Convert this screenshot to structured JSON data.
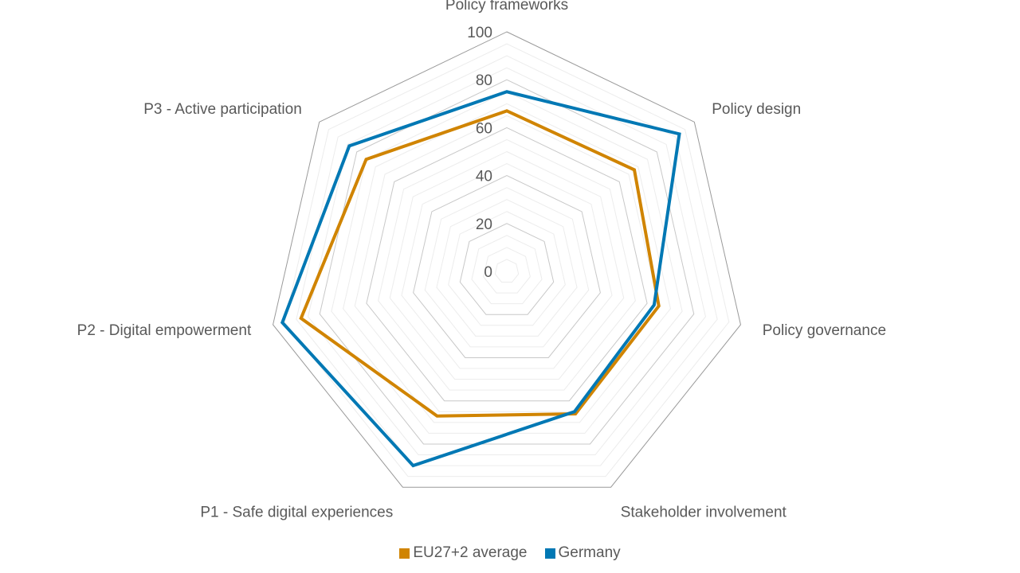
{
  "chart_data": {
    "type": "radar",
    "title": "",
    "categories": [
      "Policy frameworks",
      "Policy design",
      "Policy governance",
      "Stakeholder involvement",
      "P1 - Safe digital experiences",
      "P2 - Digital empowerment",
      "P3 - Active participation"
    ],
    "r_ticks": [
      "0",
      "20",
      "40",
      "60",
      "80",
      "100"
    ],
    "r_range": [
      0,
      100
    ],
    "minor_gridlines_step": 5,
    "grid": true,
    "legend_position": "bottom",
    "series": [
      {
        "name": "EU27+2 average",
        "color": "#D08400",
        "values": [
          67,
          68,
          65,
          66,
          67,
          88,
          75
        ]
      },
      {
        "name": "Germany",
        "color": "#0078B4",
        "values": [
          75,
          92,
          63,
          65,
          90,
          96,
          84
        ]
      }
    ]
  }
}
